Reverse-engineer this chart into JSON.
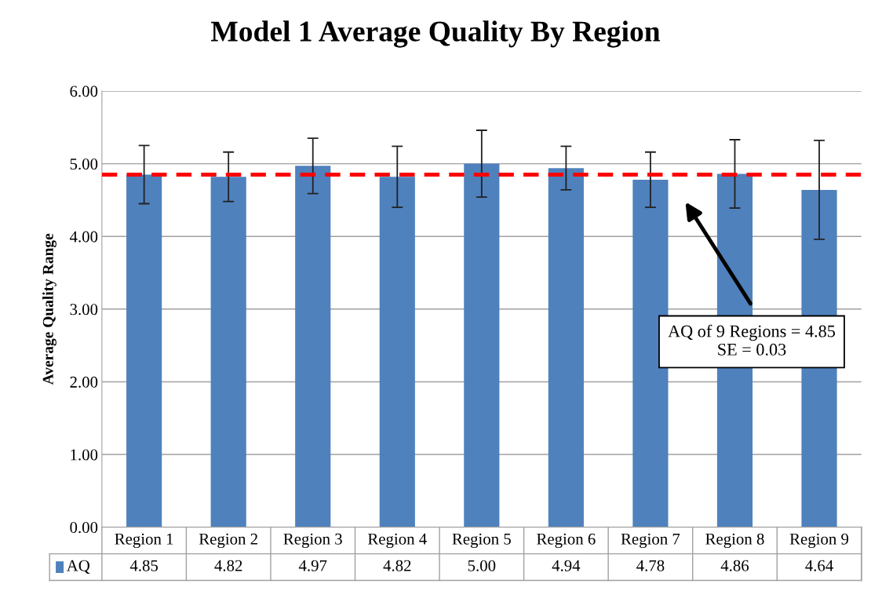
{
  "chart_data": {
    "type": "bar",
    "title": "Model 1 Average Quality By Region",
    "ylabel": "Average Quality Range",
    "categories": [
      "Region 1",
      "Region 2",
      "Region 3",
      "Region 4",
      "Region 5",
      "Region 6",
      "Region 7",
      "Region 8",
      "Region 9"
    ],
    "series": [
      {
        "name": "AQ",
        "color": "#4f81bd",
        "values": [
          4.85,
          4.82,
          4.97,
          4.82,
          5.0,
          4.94,
          4.78,
          4.86,
          4.64
        ],
        "errors": [
          0.4,
          0.34,
          0.38,
          0.42,
          0.46,
          0.3,
          0.38,
          0.47,
          0.68
        ],
        "value_labels": [
          "4.85",
          "4.82",
          "4.97",
          "4.82",
          "5.00",
          "4.94",
          "4.78",
          "4.86",
          "4.64"
        ]
      }
    ],
    "ylim": [
      0,
      6
    ],
    "yticks": [
      {
        "value": 0,
        "label": "0.00"
      },
      {
        "value": 1,
        "label": "1.00"
      },
      {
        "value": 2,
        "label": "2.00"
      },
      {
        "value": 3,
        "label": "3.00"
      },
      {
        "value": 4,
        "label": "4.00"
      },
      {
        "value": 5,
        "label": "5.00"
      },
      {
        "value": 6,
        "label": "6.00"
      }
    ],
    "grid": "y",
    "legend": "bottom",
    "ref_lines": [
      {
        "axis": "y",
        "value": 4.85,
        "color": "#ff0000",
        "line_style": "dashed"
      }
    ],
    "annotations": [
      "AQ of 9 Regions = 4.85\nSE = 0.03"
    ]
  }
}
